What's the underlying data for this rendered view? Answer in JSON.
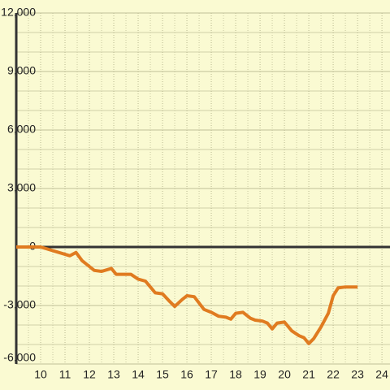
{
  "chart_data": {
    "type": "line",
    "x": [
      9,
      10,
      11.2,
      11.45,
      11.7,
      12,
      12.2,
      12.5,
      12.9,
      13.1,
      13.7,
      14,
      14.3,
      14.7,
      15,
      15.3,
      15.5,
      15.8,
      16,
      16.3,
      16.7,
      17,
      17.3,
      17.6,
      17.8,
      18,
      18.3,
      18.6,
      18.8,
      19.1,
      19.3,
      19.5,
      19.7,
      20,
      20.3,
      20.6,
      20.8,
      21,
      21.2,
      21.5,
      21.8,
      22,
      22.2,
      22.5,
      23
    ],
    "series": [
      {
        "color": "#e07b20",
        "values": [
          0,
          0,
          -450,
          -280,
          -700,
          -1000,
          -1200,
          -1250,
          -1100,
          -1400,
          -1400,
          -1650,
          -1750,
          -2350,
          -2400,
          -2800,
          -3050,
          -2700,
          -2500,
          -2550,
          -3200,
          -3350,
          -3550,
          -3600,
          -3700,
          -3400,
          -3350,
          -3650,
          -3750,
          -3800,
          -3900,
          -4200,
          -3900,
          -3850,
          -4300,
          -4550,
          -4650,
          -4950,
          -4700,
          -4100,
          -3400,
          -2500,
          -2100,
          -2050,
          -2050
        ]
      }
    ],
    "xlim": [
      9,
      24.33
    ],
    "ylim": [
      -6000,
      12000
    ],
    "xticks": [
      10,
      11,
      12,
      13,
      14,
      15,
      16,
      17,
      18,
      19,
      20,
      21,
      22,
      23,
      24
    ],
    "yticks": [
      {
        "value": -6000,
        "label": "-6,000"
      },
      {
        "value": -3000,
        "label": "-3,000"
      },
      0,
      {
        "value": 3000,
        "label": "3,000"
      },
      {
        "value": 6000,
        "label": "6,000"
      },
      {
        "value": 9000,
        "label": "9,000"
      },
      {
        "value": 12000,
        "label": "12,000"
      }
    ],
    "minor_xticks": [
      9.5,
      10.5,
      11.5,
      12.5,
      13.5,
      14.5,
      15.5,
      16.5,
      17.5,
      18.5,
      19.5,
      20.5,
      21.5,
      22.5,
      23.5
    ],
    "minor_yticks": [
      -5000,
      -4000,
      -2000,
      -1000,
      1000,
      2000,
      4000,
      5000,
      7000,
      8000,
      10000,
      11000
    ],
    "grid": true
  }
}
